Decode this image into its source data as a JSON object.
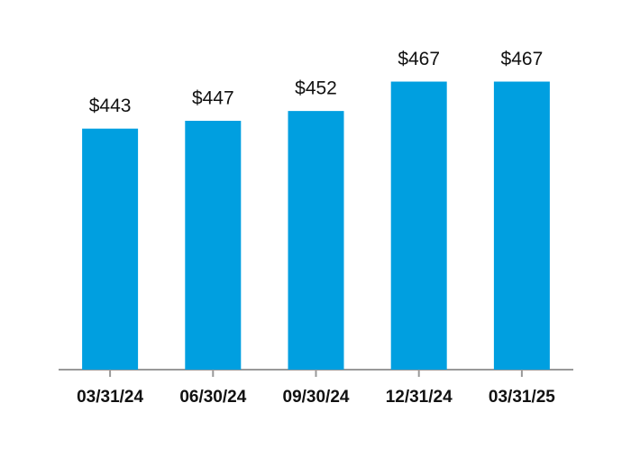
{
  "chart_data": {
    "type": "bar",
    "categories": [
      "03/31/24",
      "06/30/24",
      "09/30/24",
      "12/31/24",
      "03/31/25"
    ],
    "values": [
      443,
      447,
      452,
      467,
      467
    ],
    "value_labels": [
      "$443",
      "$447",
      "$452",
      "$467",
      "$467"
    ],
    "color": "#009fe0",
    "ylim": [
      320,
      470
    ]
  }
}
